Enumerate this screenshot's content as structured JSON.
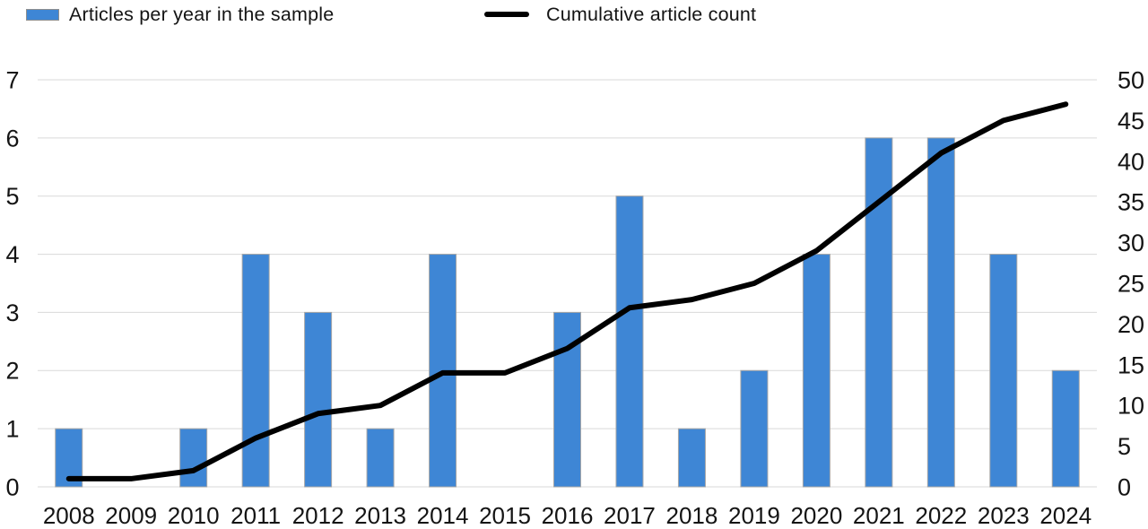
{
  "legend": {
    "bars_label": "Articles per year in the sample",
    "line_label": "Cumulative article count"
  },
  "colors": {
    "bar_fill": "#3E86D5",
    "bar_border": "#A6A6A6",
    "line": "#000000",
    "grid": "#D9D9D9",
    "text": "#141414"
  },
  "chart_data": {
    "type": "bar",
    "title": "",
    "categories": [
      "2008",
      "2009",
      "2010",
      "2011",
      "2012",
      "2013",
      "2014",
      "2015",
      "2016",
      "2017",
      "2018",
      "2019",
      "2020",
      "2021",
      "2022",
      "2023",
      "2024"
    ],
    "series": [
      {
        "name": "Articles per year in the sample",
        "type": "bar",
        "axis": "left",
        "values": [
          1,
          0,
          1,
          4,
          3,
          1,
          4,
          0,
          3,
          5,
          1,
          2,
          4,
          6,
          6,
          4,
          2
        ]
      },
      {
        "name": "Cumulative article count",
        "type": "line",
        "axis": "right",
        "values": [
          1,
          1,
          2,
          6,
          9,
          10,
          14,
          14,
          17,
          22,
          23,
          25,
          29,
          35,
          41,
          45,
          47
        ]
      }
    ],
    "left_axis": {
      "min": 0,
      "max": 7,
      "ticks": [
        0,
        1,
        2,
        3,
        4,
        5,
        6,
        7
      ]
    },
    "right_axis": {
      "min": 0,
      "max": 50,
      "ticks": [
        0,
        5,
        10,
        15,
        20,
        25,
        30,
        35,
        40,
        45,
        50
      ]
    },
    "grid": "horizontal",
    "legend_position": "top"
  }
}
